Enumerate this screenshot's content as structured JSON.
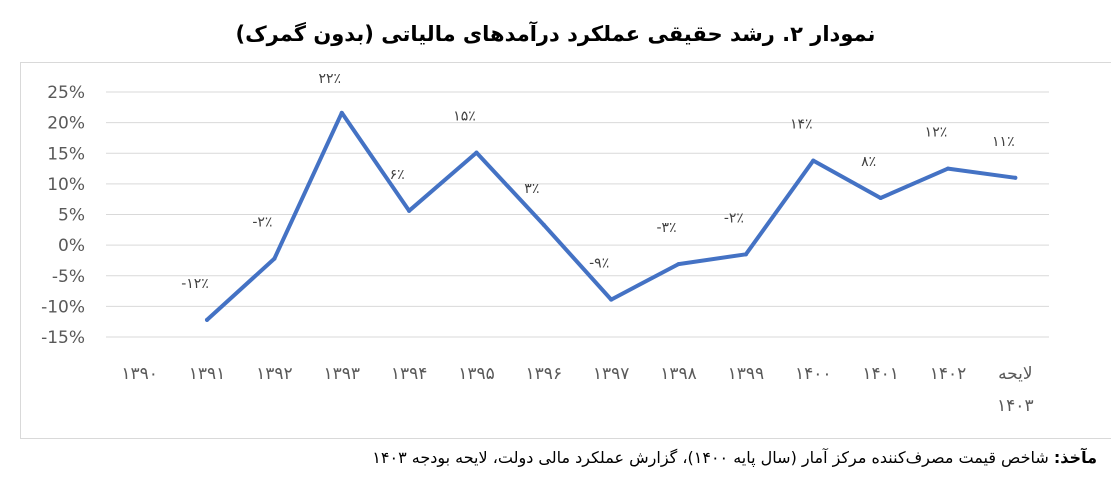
{
  "title": "نمودار ۲. رشد حقیقی عملکرد درآمدهای مالیاتی (بدون گمرک)",
  "source": {
    "label": "مآخذ:",
    "text": " شاخص قیمت مصرف‌کننده مرکز آمار (سال پایه ۱۴۰۰)، گزارش عملکرد مالی دولت، لایحه بودجه ۱۴۰۳"
  },
  "colors": {
    "line": "#4472c4",
    "grid": "#d9d9d9",
    "text": "#595959",
    "label": "#404040"
  },
  "chart_data": {
    "type": "line",
    "categories": [
      "۱۳۹۰",
      "۱۳۹۱",
      "۱۳۹۲",
      "۱۳۹۳",
      "۱۳۹۴",
      "۱۳۹۵",
      "۱۳۹۶",
      "۱۳۹۷",
      "۱۳۹۸",
      "۱۳۹۹",
      "۱۴۰۰",
      "۱۴۰۱",
      "۱۴۰۲",
      "لایحه ۱۴۰۳"
    ],
    "values": [
      null,
      -12.2,
      -2.2,
      21.6,
      5.6,
      15.1,
      3.3,
      -8.9,
      -3.1,
      -1.5,
      13.8,
      7.7,
      12.5,
      11.0
    ],
    "data_labels": [
      "",
      "-۱۲٪",
      "-۲٪",
      "۲۲٪",
      "۶٪",
      "۱۵٪",
      "۳٪",
      "-۹٪",
      "-۳٪",
      "-۲٪",
      "۱۴٪",
      "۸٪",
      "۱۲٪",
      "۱۱٪"
    ],
    "y_ticks": [
      "25%",
      "20%",
      "15%",
      "10%",
      "5%",
      "0%",
      "-5%",
      "-10%",
      "-15%"
    ],
    "ylim": [
      -15,
      25
    ],
    "grid": true,
    "legend": "none"
  }
}
